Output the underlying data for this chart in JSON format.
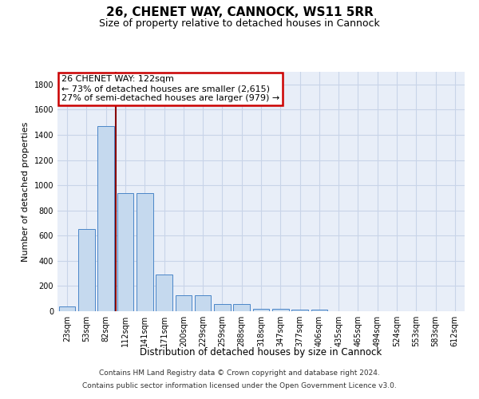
{
  "title": "26, CHENET WAY, CANNOCK, WS11 5RR",
  "subtitle": "Size of property relative to detached houses in Cannock",
  "xlabel": "Distribution of detached houses by size in Cannock",
  "ylabel": "Number of detached properties",
  "categories": [
    "23sqm",
    "53sqm",
    "82sqm",
    "112sqm",
    "141sqm",
    "171sqm",
    "200sqm",
    "229sqm",
    "259sqm",
    "288sqm",
    "318sqm",
    "347sqm",
    "377sqm",
    "406sqm",
    "435sqm",
    "465sqm",
    "494sqm",
    "524sqm",
    "553sqm",
    "583sqm",
    "612sqm"
  ],
  "values": [
    37,
    650,
    1470,
    935,
    935,
    290,
    125,
    125,
    60,
    60,
    22,
    22,
    15,
    15,
    0,
    0,
    0,
    0,
    0,
    0,
    0
  ],
  "bar_color": "#c5d9ee",
  "bar_edge_color": "#4a86c8",
  "grid_color": "#c8d4e8",
  "background_color": "#e8eef8",
  "vline_x": 2.5,
  "vline_color": "#880000",
  "annotation_text": "26 CHENET WAY: 122sqm\n← 73% of detached houses are smaller (2,615)\n27% of semi-detached houses are larger (979) →",
  "annotation_box_facecolor": "#ffffff",
  "annotation_box_edgecolor": "#cc0000",
  "footnote_line1": "Contains HM Land Registry data © Crown copyright and database right 2024.",
  "footnote_line2": "Contains public sector information licensed under the Open Government Licence v3.0.",
  "ylim": [
    0,
    1900
  ],
  "yticks": [
    0,
    200,
    400,
    600,
    800,
    1000,
    1200,
    1400,
    1600,
    1800
  ],
  "title_fontsize": 11,
  "subtitle_fontsize": 9,
  "axis_label_fontsize": 8,
  "tick_fontsize": 7,
  "annot_fontsize": 8,
  "footnote_fontsize": 6.5,
  "bar_width": 0.85
}
